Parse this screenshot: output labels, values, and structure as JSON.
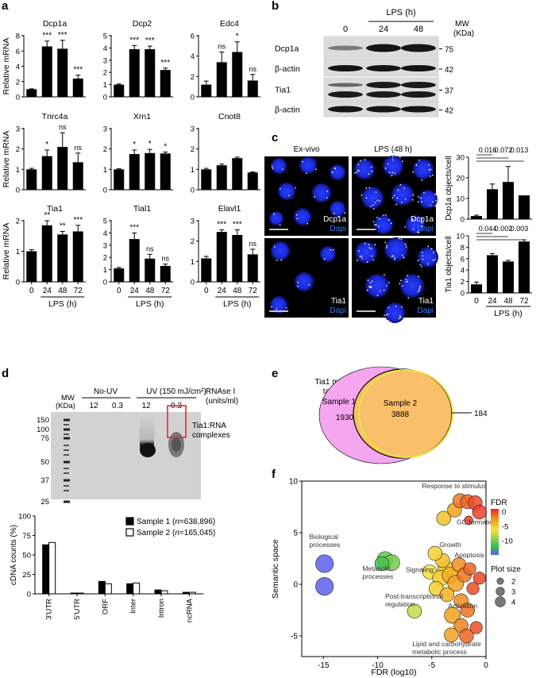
{
  "panel_letters": [
    "a",
    "b",
    "c",
    "d",
    "e",
    "f"
  ],
  "chart_data": [
    {
      "panel": "a",
      "type": "bar",
      "ylabel": "Relative mRNA",
      "xlabel": "LPS (h)",
      "categories": [
        "0",
        "24",
        "48",
        "72"
      ],
      "subplots": [
        {
          "title": "Dcp1a",
          "ylim": [
            0,
            8
          ],
          "ticks": [
            0,
            2,
            4,
            6,
            8
          ],
          "values": [
            1.0,
            6.6,
            6.3,
            2.4
          ],
          "errors": [
            0.05,
            0.7,
            1.1,
            0.45
          ],
          "sig": [
            "",
            "***",
            "***",
            "***"
          ]
        },
        {
          "title": "Dcp2",
          "ylim": [
            0,
            5
          ],
          "ticks": [
            0,
            1,
            2,
            3,
            4,
            5
          ],
          "values": [
            1.0,
            3.9,
            3.9,
            2.2
          ],
          "errors": [
            0.05,
            0.3,
            0.25,
            0.15
          ],
          "sig": [
            "",
            "***",
            "***",
            "***"
          ]
        },
        {
          "title": "Edc4",
          "ylim": [
            0,
            6
          ],
          "ticks": [
            0,
            2,
            4,
            6
          ],
          "values": [
            1.2,
            3.4,
            4.4,
            1.6
          ],
          "errors": [
            0.35,
            1.0,
            1.0,
            0.6
          ],
          "sig": [
            "",
            "ns",
            "*",
            "ns"
          ]
        },
        {
          "title": "Tnrc4a",
          "ylim": [
            0,
            3
          ],
          "ticks": [
            0,
            1,
            2,
            3
          ],
          "values": [
            1.0,
            1.65,
            2.1,
            1.35
          ],
          "errors": [
            0.05,
            0.3,
            0.7,
            0.45
          ],
          "sig": [
            "",
            "*",
            "ns",
            "ns"
          ]
        },
        {
          "title": "Xrn1",
          "ylim": [
            0,
            3
          ],
          "ticks": [
            0,
            1,
            2,
            3
          ],
          "values": [
            1.0,
            1.75,
            1.8,
            1.78
          ],
          "errors": [
            0.03,
            0.2,
            0.18,
            0.07
          ],
          "sig": [
            "",
            "*",
            "*",
            "*"
          ]
        },
        {
          "title": "Cnot8",
          "ylim": [
            0,
            3
          ],
          "ticks": [
            0,
            1,
            2,
            3
          ],
          "values": [
            1.0,
            1.2,
            1.55,
            0.85
          ],
          "errors": [
            0.05,
            0.06,
            0.05,
            0.03
          ],
          "sig": [
            "",
            "",
            "",
            ""
          ]
        },
        {
          "title": "Tia1",
          "ylim": [
            0,
            2
          ],
          "ticks": [
            0,
            1,
            2
          ],
          "values": [
            1.0,
            1.85,
            1.55,
            1.65
          ],
          "errors": [
            0.05,
            0.15,
            0.1,
            0.2
          ],
          "sig": [
            "",
            "**",
            "**",
            "***"
          ]
        },
        {
          "title": "Tial1",
          "ylim": [
            0,
            5
          ],
          "ticks": [
            0,
            1,
            2,
            3,
            4,
            5
          ],
          "values": [
            1.1,
            3.5,
            1.9,
            1.3
          ],
          "errors": [
            0.08,
            0.5,
            0.35,
            0.15
          ],
          "sig": [
            "",
            "***",
            "ns",
            "ns"
          ]
        },
        {
          "title": "Elavl1",
          "ylim": [
            0,
            3
          ],
          "ticks": [
            0,
            1,
            2,
            3
          ],
          "values": [
            1.15,
            2.45,
            2.3,
            1.35
          ],
          "errors": [
            0.1,
            0.1,
            0.25,
            0.25
          ],
          "sig": [
            "",
            "***",
            "***",
            "ns"
          ]
        }
      ]
    },
    {
      "panel": "c",
      "type": "bar",
      "xlabel": "LPS (h)",
      "categories": [
        "0",
        "24",
        "48",
        "72"
      ],
      "subplots": [
        {
          "ylabel": "Dcp1a objects/cell",
          "ylim": [
            0,
            30
          ],
          "ticks": [
            0,
            10,
            20,
            30
          ],
          "values": [
            1.5,
            14.5,
            18.0,
            11.5
          ],
          "errors": [
            0.4,
            2.5,
            7.5,
            0
          ],
          "pvalues": [
            {
              "from": 0,
              "to": 1,
              "label": "0.016"
            },
            {
              "from": 0,
              "to": 2,
              "label": "0.072"
            },
            {
              "from": 0,
              "to": 3,
              "label": "0.013"
            }
          ]
        },
        {
          "ylabel": "Tia1 objects/cell",
          "ylim": [
            0,
            10
          ],
          "ticks": [
            0,
            2,
            4,
            6,
            8,
            10
          ],
          "values": [
            1.5,
            6.6,
            5.5,
            9.0
          ],
          "errors": [
            0.4,
            0.3,
            0.2,
            0.3
          ],
          "pvalues": [
            {
              "from": 0,
              "to": 1,
              "label": "0.044"
            },
            {
              "from": 0,
              "to": 2,
              "label": "0.002"
            },
            {
              "from": 0,
              "to": 3,
              "label": "0.003"
            }
          ]
        }
      ]
    },
    {
      "panel": "d",
      "type": "bar",
      "ylabel": "cDNA counts (%)",
      "ylim": [
        0,
        100
      ],
      "ticks": [
        0,
        25,
        50,
        75,
        100
      ],
      "categories": [
        "3'UTR",
        "5'UTR",
        "ORF",
        "Inter",
        "Intron",
        "ncRNA"
      ],
      "series": [
        {
          "name": "Sample 1",
          "n": "638,896",
          "values": [
            63,
            1,
            16,
            13,
            5,
            2
          ]
        },
        {
          "name": "Sample 2",
          "n": "165,045",
          "values": [
            66,
            1,
            13,
            14,
            4,
            2
          ]
        }
      ]
    },
    {
      "panel": "f",
      "type": "scatter",
      "xlabel": "FDR (log10)",
      "ylabel": "Semantic space",
      "xlim": [
        -17,
        0
      ],
      "ylim": [
        -7,
        10
      ],
      "xticks": [
        -15,
        -10,
        -5,
        0
      ],
      "yticks": [
        -5,
        0,
        5,
        10
      ],
      "color_label": "FDR",
      "color_ticks": [
        0,
        -5,
        -10
      ],
      "size_label": "Plot size",
      "size_ticks": [
        2,
        3,
        4
      ],
      "points": [
        {
          "x": -14.9,
          "y": 2.0,
          "s": 4,
          "fdr": -15
        },
        {
          "x": -14.9,
          "y": -0.2,
          "s": 4,
          "fdr": -15
        },
        {
          "x": -9.3,
          "y": 2.4,
          "s": 3.5,
          "fdr": -9
        },
        {
          "x": -8.7,
          "y": 2.1,
          "s": 3.5,
          "fdr": -8.5
        },
        {
          "x": -9.6,
          "y": 2.0,
          "s": 3,
          "fdr": -9.5
        },
        {
          "x": -6.6,
          "y": -2.6,
          "s": 3,
          "fdr": -6.5
        },
        {
          "x": -5.2,
          "y": 1.2,
          "s": 3,
          "fdr": -5
        },
        {
          "x": -3.7,
          "y": 1.5,
          "s": 3.5,
          "fdr": -4
        },
        {
          "x": -4.2,
          "y": 0.6,
          "s": 3.5,
          "fdr": -4.2
        },
        {
          "x": -3.3,
          "y": 0.9,
          "s": 3.5,
          "fdr": -3.5
        },
        {
          "x": -4.6,
          "y": -0.4,
          "s": 3,
          "fdr": -4.5
        },
        {
          "x": -2.8,
          "y": 0.1,
          "s": 3.5,
          "fdr": -3
        },
        {
          "x": -3.6,
          "y": -1.0,
          "s": 3,
          "fdr": -3.5
        },
        {
          "x": -2.5,
          "y": 1.9,
          "s": 3,
          "fdr": -2.5
        },
        {
          "x": -4.0,
          "y": 2.3,
          "s": 3,
          "fdr": -4
        },
        {
          "x": -4.7,
          "y": 3.0,
          "s": 3,
          "fdr": -4.5
        },
        {
          "x": -2.0,
          "y": 0.9,
          "s": 3,
          "fdr": -2
        },
        {
          "x": -2.3,
          "y": -1.6,
          "s": 3,
          "fdr": -2.5
        },
        {
          "x": -1.7,
          "y": -2.5,
          "s": 3,
          "fdr": -1.8
        },
        {
          "x": -3.1,
          "y": -3.0,
          "s": 3.5,
          "fdr": -3
        },
        {
          "x": -2.3,
          "y": -4.0,
          "s": 3,
          "fdr": -2.3
        },
        {
          "x": -3.2,
          "y": -4.9,
          "s": 3,
          "fdr": -3
        },
        {
          "x": -1.8,
          "y": -5.0,
          "s": 3,
          "fdr": -1.5
        },
        {
          "x": -0.9,
          "y": -4.2,
          "s": 2.5,
          "fdr": -1
        },
        {
          "x": -1.2,
          "y": -0.4,
          "s": 2.5,
          "fdr": -1
        },
        {
          "x": -0.6,
          "y": 0.6,
          "s": 2.5,
          "fdr": -0.8
        },
        {
          "x": -1.5,
          "y": 1.5,
          "s": 2.5,
          "fdr": -1.5
        },
        {
          "x": -3.9,
          "y": 6.4,
          "s": 3,
          "fdr": -4
        },
        {
          "x": -2.9,
          "y": 7.2,
          "s": 3,
          "fdr": -3
        },
        {
          "x": -2.4,
          "y": 8.1,
          "s": 3,
          "fdr": -2
        },
        {
          "x": -1.7,
          "y": 8.0,
          "s": 3,
          "fdr": -1.5
        },
        {
          "x": -1.0,
          "y": 7.9,
          "s": 3,
          "fdr": -1
        },
        {
          "x": -0.6,
          "y": 7.0,
          "s": 3,
          "fdr": -0.6
        },
        {
          "x": -1.6,
          "y": 6.2,
          "s": 1.5,
          "fdr": -0.5
        }
      ],
      "labels": [
        {
          "text": "Response to stimulus",
          "x": -5.9,
          "y": 9.3,
          "lines": [
            "Response to stimulus"
          ]
        },
        {
          "text": "GC formation",
          "x": -2.7,
          "y": 5.8,
          "lines": [
            "GC formation"
          ]
        },
        {
          "text": "Biological processes",
          "x": -16.3,
          "y": 4.4,
          "lines": [
            "Biological",
            "processes"
          ]
        },
        {
          "text": "Growth",
          "x": -4.3,
          "y": 3.6,
          "lines": [
            "Growth"
          ]
        },
        {
          "text": "Apoptosis",
          "x": -2.9,
          "y": 2.6,
          "lines": [
            "Apoptosis"
          ]
        },
        {
          "text": "Metabolic processes",
          "x": -11.4,
          "y": 1.3,
          "lines": [
            "Metabolic",
            "processes"
          ]
        },
        {
          "text": "Signaling",
          "x": -7.4,
          "y": 1.2,
          "lines": [
            "Signaling"
          ]
        },
        {
          "text": "Post-transcriptional regulation",
          "x": -9.3,
          "y": -1.4,
          "lines": [
            "Post-transcriptional",
            "regulation"
          ]
        },
        {
          "text": "Activation",
          "x": -3.5,
          "y": -2.3,
          "lines": [
            "Activation"
          ]
        },
        {
          "text": "Lipid and carbohydrate metabolic process",
          "x": -6.8,
          "y": -6.0,
          "lines": [
            "Lipid and carbohydrate",
            "metabolic process"
          ]
        }
      ]
    }
  ],
  "panel_b": {
    "header": "LPS (h)",
    "lanes": [
      "0",
      "24",
      "48"
    ],
    "mw_label": [
      "MW",
      "(KDa)"
    ],
    "rows": [
      {
        "label": "Dcp1a",
        "mw": "75"
      },
      {
        "label": "β-actin",
        "mw": "42"
      },
      {
        "label": "Tia1",
        "mw": "37"
      },
      {
        "label": "β-actin",
        "mw": "42"
      }
    ]
  },
  "panel_c_images": {
    "col_titles": [
      "Ex-vivo",
      "LPS (48 h)"
    ],
    "stain_labels": [
      [
        "Dcp1a",
        "Dapi"
      ],
      [
        "Tia1",
        "Dapi"
      ]
    ]
  },
  "panel_d_gel": {
    "mw_label": [
      "MW",
      "(KDa)"
    ],
    "group_labels": [
      "No-UV",
      "UV (150 mJ/cm²)",
      "RNAse I"
    ],
    "rnase_units": "(units/ml)",
    "lane_values": [
      "12",
      "0.3",
      "12",
      "0.3"
    ],
    "markers": [
      "150",
      "100",
      "75",
      "50",
      "37",
      "25"
    ],
    "complex_label": [
      "Tia1:RNA",
      "complexes"
    ],
    "highlight_color": "#e8262b"
  },
  "panel_e_venn": {
    "title": [
      "Tia1 mRNA",
      "targets"
    ],
    "sample1_label": "Sample 1",
    "sample1_only": "1930",
    "sample2_label": "Sample 2",
    "overlap": "3888",
    "sample2_only": "184",
    "sample1_color": "#f4a6ee",
    "sample2_color": "#f9bf6a"
  },
  "colors": {
    "bar": "#000000",
    "fdr_scale": [
      "#e8262b",
      "#f3a11d",
      "#f7e23a",
      "#8fd14f",
      "#2fbf4f",
      "#5a5ff0"
    ]
  }
}
